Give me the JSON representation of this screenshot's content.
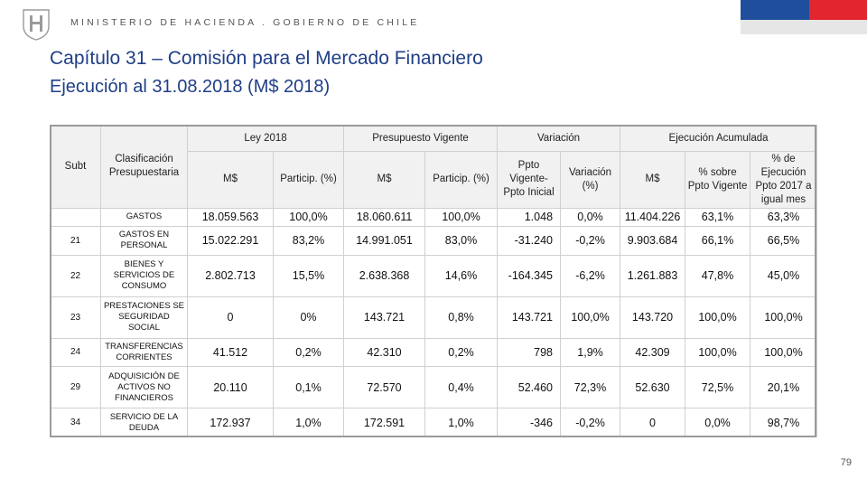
{
  "header": {
    "ministry": "MINISTERIO DE HACIENDA . GOBIERNO DE CHILE",
    "colors": {
      "flag_blue": "#1f4f9c",
      "flag_red": "#e3262e",
      "title": "#1f3f86"
    }
  },
  "title": "Capítulo 31 – Comisión para el Mercado Financiero",
  "subtitle": "Ejecución al 31.08.2018 (M$ 2018)",
  "table": {
    "group_headers": {
      "subt": "Subt",
      "clasificacion": "Clasificación Presupuestaria",
      "ley": "Ley 2018",
      "presupuesto": "Presupuesto Vigente",
      "variacion": "Variación",
      "ejecucion": "Ejecución Acumulada"
    },
    "sub_headers": [
      "M$",
      "Particip. (%)",
      "M$",
      "Particip. (%)",
      "Ppto Vigente- Ppto Inicial",
      "Variación (%)",
      "M$",
      "% sobre Ppto Vigente",
      "% de Ejecución Ppto 2017 a igual mes"
    ],
    "rows": [
      {
        "subt": "",
        "label": "GASTOS",
        "cells": [
          "18.059.563",
          "100,0%",
          "18.060.611",
          "100,0%",
          "1.048",
          "0,0%",
          "11.404.226",
          "63,1%",
          "63,3%"
        ]
      },
      {
        "subt": "21",
        "label": "GASTOS EN PERSONAL",
        "cells": [
          "15.022.291",
          "83,2%",
          "14.991.051",
          "83,0%",
          "-31.240",
          "-0,2%",
          "9.903.684",
          "66,1%",
          "66,5%"
        ]
      },
      {
        "subt": "22",
        "label": "BIENES Y SERVICIOS DE CONSUMO",
        "cells": [
          "2.802.713",
          "15,5%",
          "2.638.368",
          "14,6%",
          "-164.345",
          "-6,2%",
          "1.261.883",
          "47,8%",
          "45,0%"
        ]
      },
      {
        "subt": "23",
        "label": "PRESTACIONES SE SEGURIDAD SOCIAL",
        "cells": [
          "0",
          "0%",
          "143.721",
          "0,8%",
          "143.721",
          "100,0%",
          "143.720",
          "100,0%",
          "100,0%"
        ]
      },
      {
        "subt": "24",
        "label": "TRANSFERENCIAS CORRIENTES",
        "cells": [
          "41.512",
          "0,2%",
          "42.310",
          "0,2%",
          "798",
          "1,9%",
          "42.309",
          "100,0%",
          "100,0%"
        ]
      },
      {
        "subt": "29",
        "label": "ADQUISICIÓN DE ACTIVOS NO FINANCIEROS",
        "cells": [
          "20.110",
          "0,1%",
          "72.570",
          "0,4%",
          "52.460",
          "72,3%",
          "52.630",
          "72,5%",
          "20,1%"
        ]
      },
      {
        "subt": "34",
        "label": "SERVICIO DE LA DEUDA",
        "cells": [
          "172.937",
          "1,0%",
          "172.591",
          "1,0%",
          "-346",
          "-0,2%",
          "0",
          "0,0%",
          "98,7%"
        ]
      }
    ]
  },
  "page_number": "79"
}
